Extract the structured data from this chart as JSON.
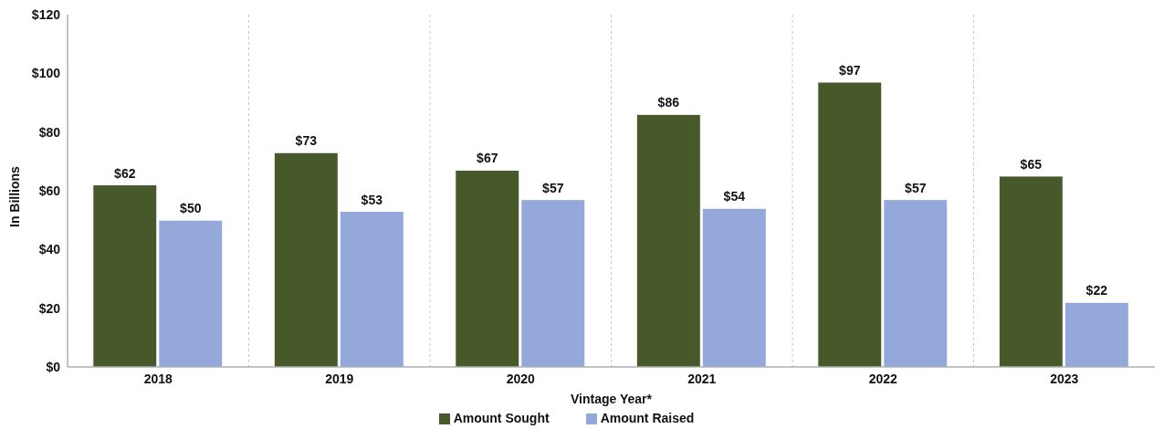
{
  "chart_data": {
    "type": "bar",
    "xlabel": "Vintage Year*",
    "ylabel": "In Billions",
    "categories": [
      "2018",
      "2019",
      "2020",
      "2021",
      "2022",
      "2023"
    ],
    "series": [
      {
        "name": "Amount Sought",
        "color": "#47592b",
        "values": [
          62,
          73,
          67,
          86,
          97,
          65
        ],
        "value_labels": [
          "$62",
          "$73",
          "$67",
          "$86",
          "$97",
          "$65"
        ]
      },
      {
        "name": "Amount Raised",
        "color": "#95a8db",
        "values": [
          50,
          53,
          57,
          54,
          57,
          22
        ],
        "value_labels": [
          "$50",
          "$53",
          "$57",
          "$54",
          "$57",
          "$22"
        ]
      }
    ],
    "ylim": [
      0,
      120
    ],
    "yticks": [
      {
        "value": 0,
        "label": "$0"
      },
      {
        "value": 20,
        "label": "$20"
      },
      {
        "value": 40,
        "label": "$40"
      },
      {
        "value": 60,
        "label": "$60"
      },
      {
        "value": 80,
        "label": "$80"
      },
      {
        "value": 100,
        "label": "$100"
      },
      {
        "value": 120,
        "label": "$120"
      }
    ],
    "grid": "x",
    "legend": "bottom"
  }
}
